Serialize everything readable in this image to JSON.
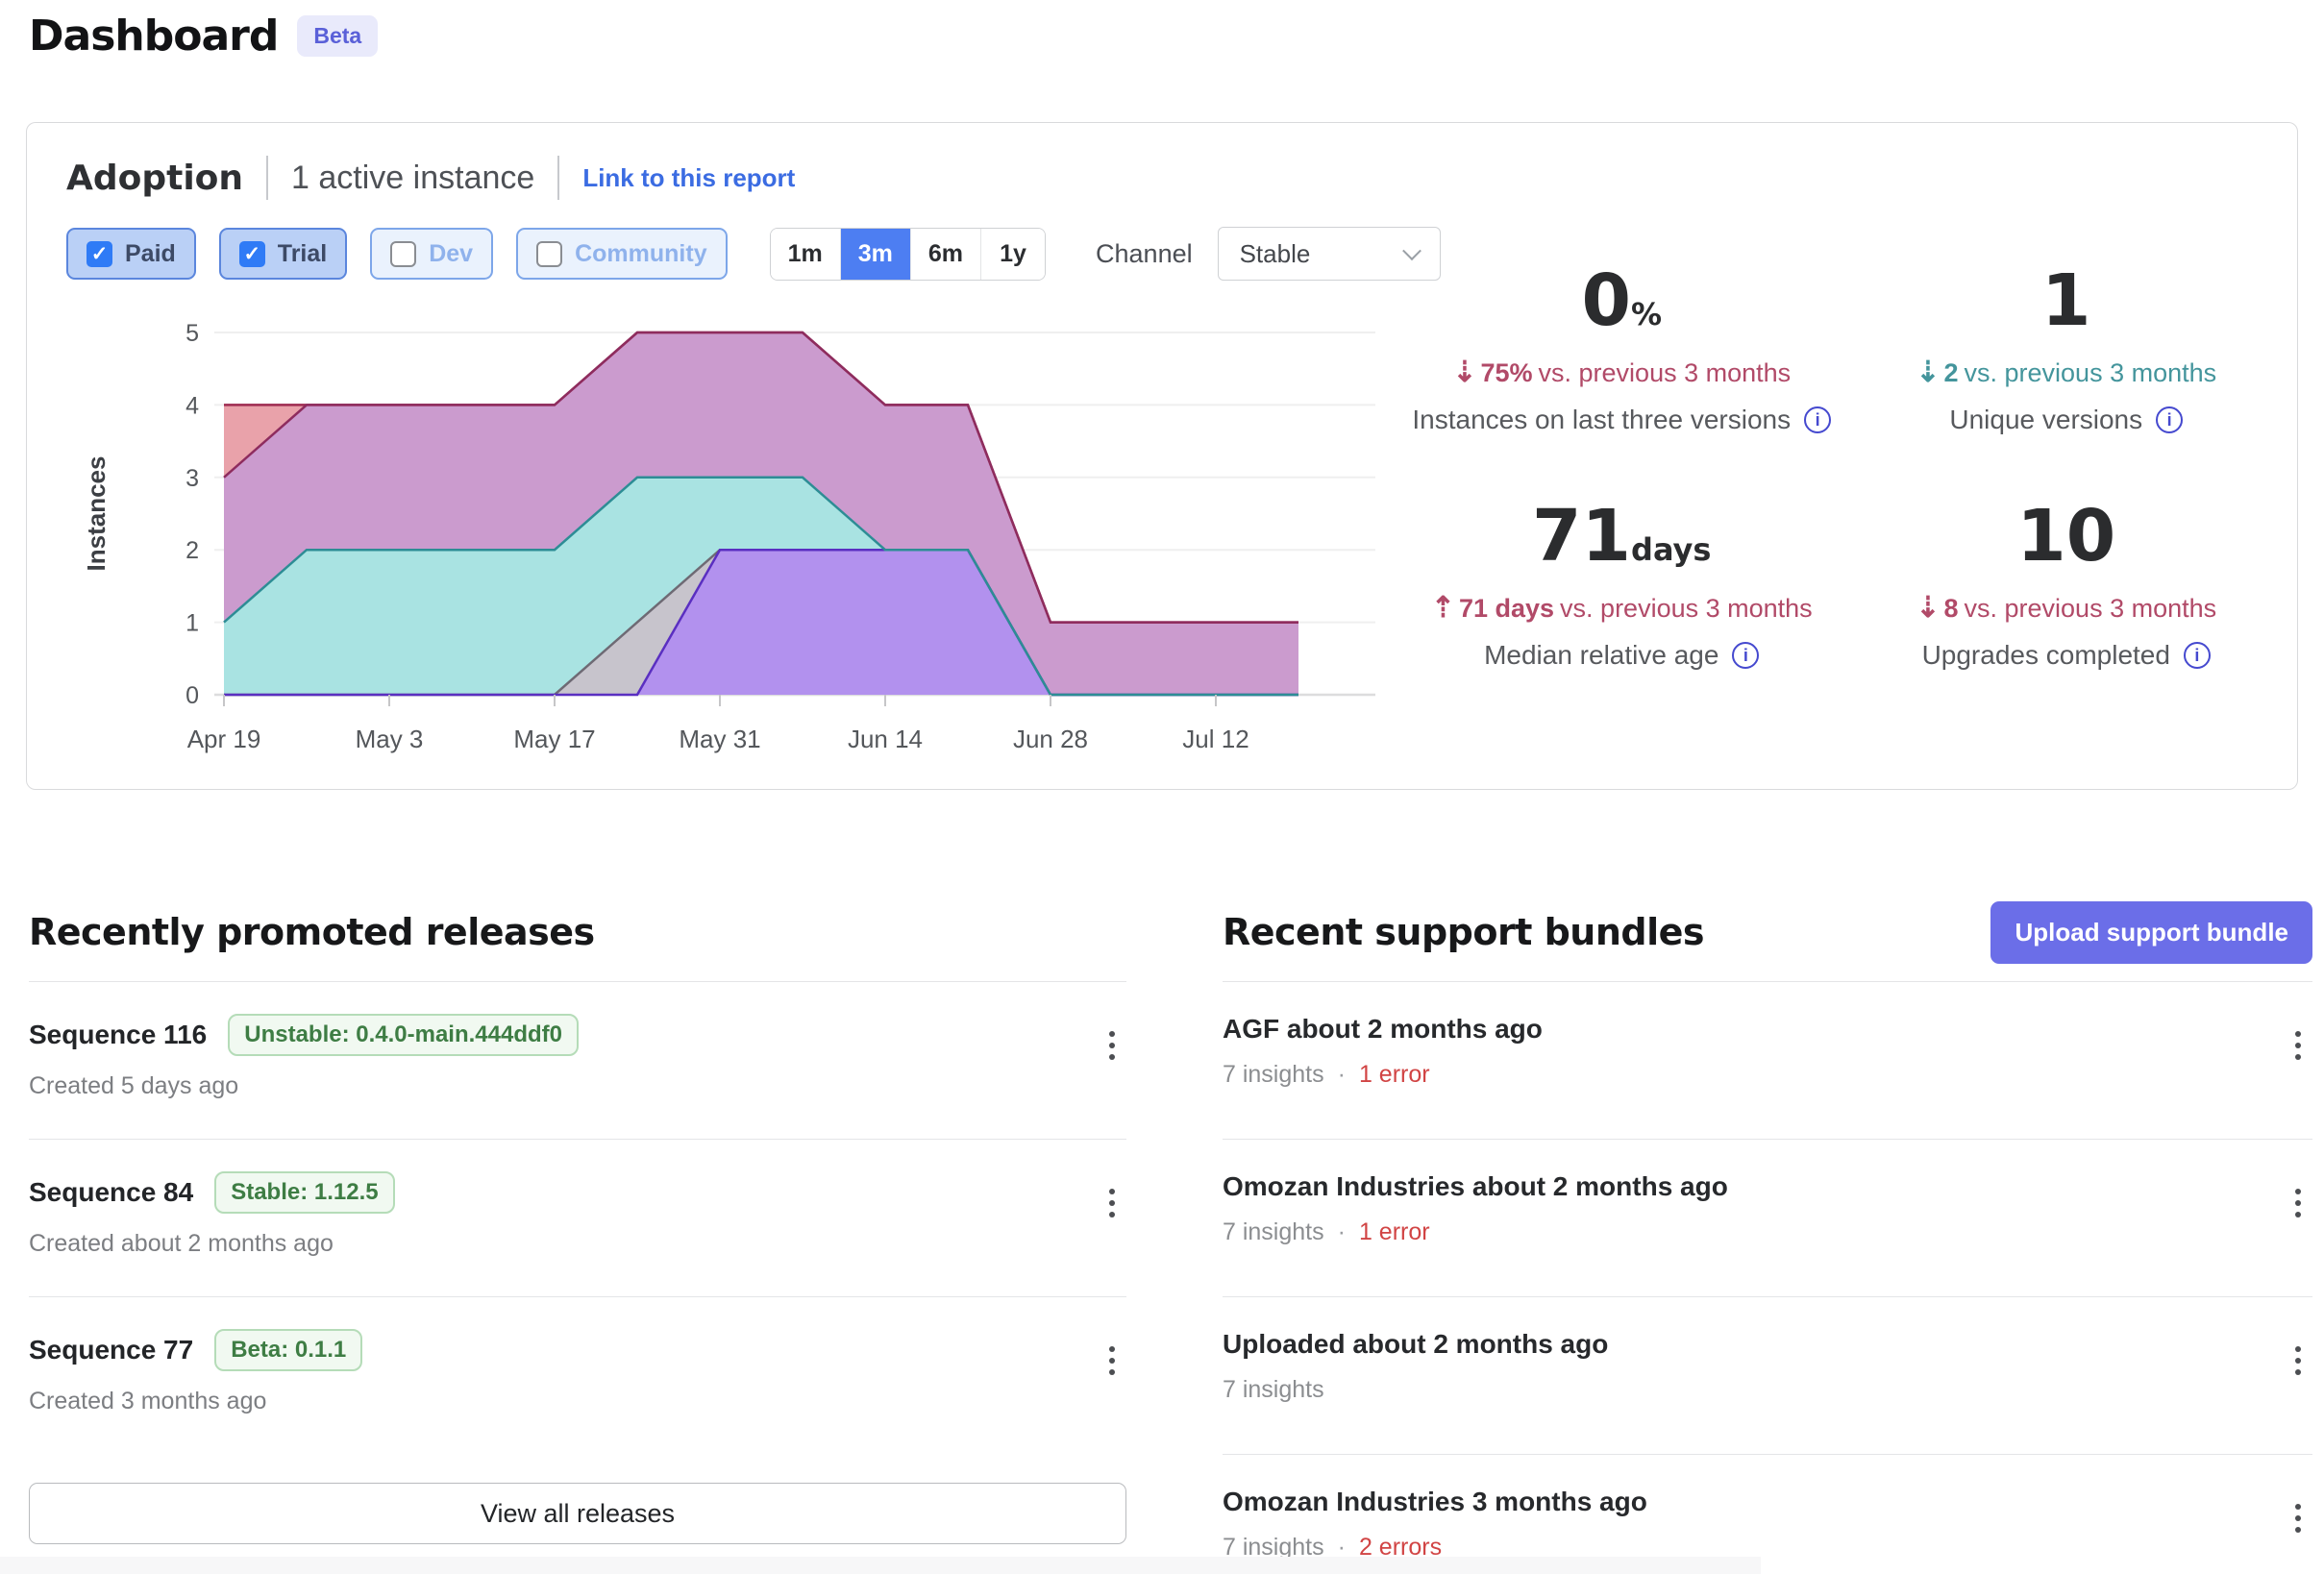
{
  "page": {
    "title": "Dashboard",
    "badge": "Beta"
  },
  "adoption": {
    "title": "Adoption",
    "active_instances": "1 active instance",
    "link": "Link to this report",
    "filters": [
      {
        "label": "Paid",
        "checked": true
      },
      {
        "label": "Trial",
        "checked": true
      },
      {
        "label": "Dev",
        "checked": false
      },
      {
        "label": "Community",
        "checked": false
      }
    ],
    "time_ranges": [
      "1m",
      "3m",
      "6m",
      "1y"
    ],
    "selected_range": "3m",
    "channel_label": "Channel",
    "channel_value": "Stable"
  },
  "stats": {
    "items": [
      {
        "value": "0",
        "unit": "%",
        "arrow": "⇣",
        "delta": "75%",
        "suffix": "vs. previous 3 months",
        "trend": "down",
        "trend_color": "#b14a68",
        "label": "Instances on last three versions"
      },
      {
        "value": "1",
        "unit": "",
        "arrow": "⇣",
        "delta": "2",
        "suffix": "vs. previous 3 months",
        "trend": "down",
        "trend_color": "#44959c",
        "label": "Unique versions"
      },
      {
        "value": "71",
        "unit": "days",
        "arrow": "⇡",
        "delta": "71 days",
        "suffix": "vs. previous 3 months",
        "trend": "up",
        "trend_color": "#b14a68",
        "label": "Median relative age"
      },
      {
        "value": "10",
        "unit": "",
        "arrow": "⇣",
        "delta": "8",
        "suffix": "vs. previous 3 months",
        "trend": "down",
        "trend_color": "#b14a68",
        "label": "Upgrades completed"
      }
    ]
  },
  "releases": {
    "heading": "Recently promoted releases",
    "view_all": "View all releases",
    "items": [
      {
        "name": "Sequence 116",
        "badge": "Unstable: 0.4.0-main.444ddf0",
        "created": "Created 5 days ago"
      },
      {
        "name": "Sequence 84",
        "badge": "Stable: 1.12.5",
        "created": "Created about 2 months ago"
      },
      {
        "name": "Sequence 77",
        "badge": "Beta: 0.1.1",
        "created": "Created 3 months ago"
      }
    ]
  },
  "bundles": {
    "heading": "Recent support bundles",
    "upload_label": "Upload support bundle",
    "items": [
      {
        "title": "AGF about 2 months ago",
        "insights": "7 insights",
        "sep": "·",
        "errors": "1 error"
      },
      {
        "title": "Omozan Industries about 2 months ago",
        "insights": "7 insights",
        "sep": "·",
        "errors": "1 error"
      },
      {
        "title": "Uploaded about 2 months ago",
        "insights": "7 insights",
        "sep": "",
        "errors": ""
      },
      {
        "title": "Omozan Industries 3 months ago",
        "insights": "7 insights",
        "sep": "·",
        "errors": "2 errors"
      }
    ]
  },
  "chart_data": {
    "type": "area",
    "title": "",
    "ylabel": "Instances",
    "ylim": [
      0,
      5
    ],
    "grid": true,
    "legend": "none",
    "x": [
      "Apr 19",
      "Apr 26",
      "May 3",
      "May 10",
      "May 17",
      "May 24",
      "May 31",
      "Jun 7",
      "Jun 14",
      "Jun 21",
      "Jun 28",
      "Jul 5",
      "Jul 12",
      "Jul 19"
    ],
    "x_tick_labels": [
      "Apr 19",
      "May 3",
      "May 17",
      "May 31",
      "Jun 14",
      "Jun 28",
      "Jul 12"
    ],
    "series": [
      {
        "name": "version-salmon",
        "fill": "#e9a2aa",
        "line": "#9e2b50",
        "values": [
          4,
          4,
          4,
          4,
          4,
          5,
          5,
          5,
          4,
          4,
          1,
          1,
          1,
          1
        ]
      },
      {
        "name": "version-magenta",
        "fill": "#cb9bce",
        "line": "#8e2c5e",
        "values": [
          3,
          4,
          4,
          4,
          4,
          5,
          5,
          5,
          4,
          4,
          1,
          1,
          1,
          1
        ]
      },
      {
        "name": "version-teal",
        "fill": "#a9e3e2",
        "line": "#2d8d95",
        "values": [
          1,
          2,
          2,
          2,
          2,
          3,
          3,
          3,
          2,
          2,
          0,
          0,
          0,
          0
        ]
      },
      {
        "name": "version-gray",
        "fill": "#c7c4cc",
        "line": "#6e6a74",
        "values": [
          0,
          0,
          0,
          0,
          0,
          1,
          2,
          2,
          2,
          2,
          0,
          0,
          0,
          0
        ]
      },
      {
        "name": "version-purple",
        "fill": "#b291ee",
        "line": "#5a2fc1",
        "values": [
          0,
          0,
          0,
          0,
          0,
          0,
          2,
          2,
          2,
          2,
          0,
          0,
          0,
          0
        ]
      }
    ]
  },
  "colors": {
    "accent_blue": "#4d7ef2",
    "link_blue": "#3b6ce2",
    "indigo_button": "#6b6ee8",
    "badge_green": "#3e7d44",
    "error_red": "#d14444",
    "trend_red": "#b14a68",
    "trend_teal": "#44959c",
    "chip_checked_bg": "#bad0f6",
    "chip_unchecked_bg": "#eaf2fd"
  }
}
